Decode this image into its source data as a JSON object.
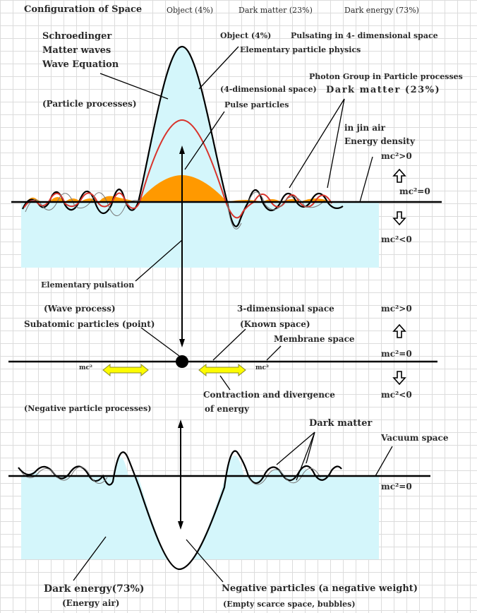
{
  "header": {
    "title": "Configuration of Space",
    "object": "Object (4%)",
    "dark_matter": "Dark matter (23%)",
    "dark_energy": "Dark energy (73%)"
  },
  "upper": {
    "schroedinger": "Schroedinger",
    "matter_waves": "Matter waves",
    "wave_equation": "Wave Equation",
    "particle_processes": "(Particle processes)",
    "object": "Object (4%)",
    "pulsating": "Pulsating in 4- dimensional space",
    "elementary_physics": "Elementary particle physics",
    "photon_group": "Photon Group in Particle processes",
    "four_dim": "(4-dimensional space)",
    "dark_matter": "Dark matter (23%)",
    "pulse_particles": "Pulse particles",
    "in_jin_air": "in jin air",
    "energy_density": "Energy density",
    "mc2_gt": "mc²>0",
    "mc2_eq": "mc²=0",
    "mc2_lt": "mc²<0",
    "elementary_pulsation": "Elementary pulsation"
  },
  "middle": {
    "wave_process": "(Wave process)",
    "subatomic": "Subatomic particles (point)",
    "three_dim": "3-dimensional space",
    "known_space": "(Known space)",
    "membrane": "Membrane space",
    "mc2_left": "mc²",
    "mc2_right": "mc²",
    "contraction": "Contraction and divergence",
    "of_energy": "of energy",
    "mc2_gt": "mc²>0",
    "mc2_eq": "mc²=0",
    "mc2_lt": "mc²<0"
  },
  "lower": {
    "negative_processes": "(Negative particle processes)",
    "dark_matter": "Dark matter",
    "vacuum": "Vacuum space",
    "mc2_eq": "mc²=0",
    "dark_energy": "Dark energy(73%)",
    "energy_air": "(Energy air)",
    "negative_particles": "Negative particles (a negative weight)",
    "empty_scarce": "(Empty scarce space, bubbles)"
  },
  "colors": {
    "cyan_fill": "#d4f6fb",
    "orange_fill": "#ff9900",
    "red_curve": "#d8332b",
    "yellow_arrow": "#fdfc00",
    "line": "#000000"
  }
}
